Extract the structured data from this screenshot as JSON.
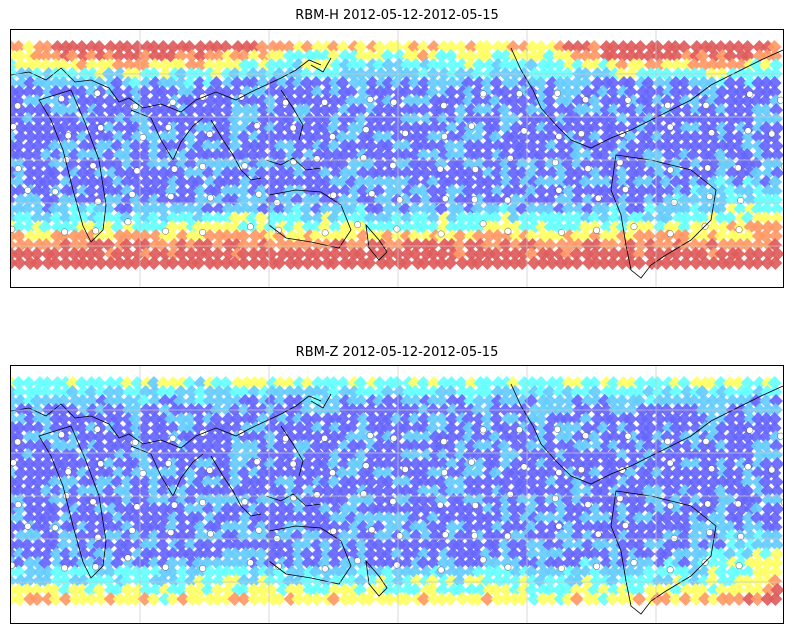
{
  "panels": [
    {
      "title": "RBM-H 2012-05-12-2012-05-15",
      "field": "rbm-h",
      "colormap": [
        "#6666ff",
        "#66ccff",
        "#66ffff",
        "#ffff66",
        "#ff9966",
        "#e05c5c"
      ],
      "gridlines": true,
      "coastlines": true
    },
    {
      "title": "RBM-Z 2012-05-12-2012-05-15",
      "field": "rbm-z",
      "colormap": [
        "#6666ff",
        "#66ccff",
        "#66ffff",
        "#ffff66",
        "#ff9966",
        "#e05c5c"
      ],
      "gridlines": true,
      "coastlines": true
    }
  ]
}
